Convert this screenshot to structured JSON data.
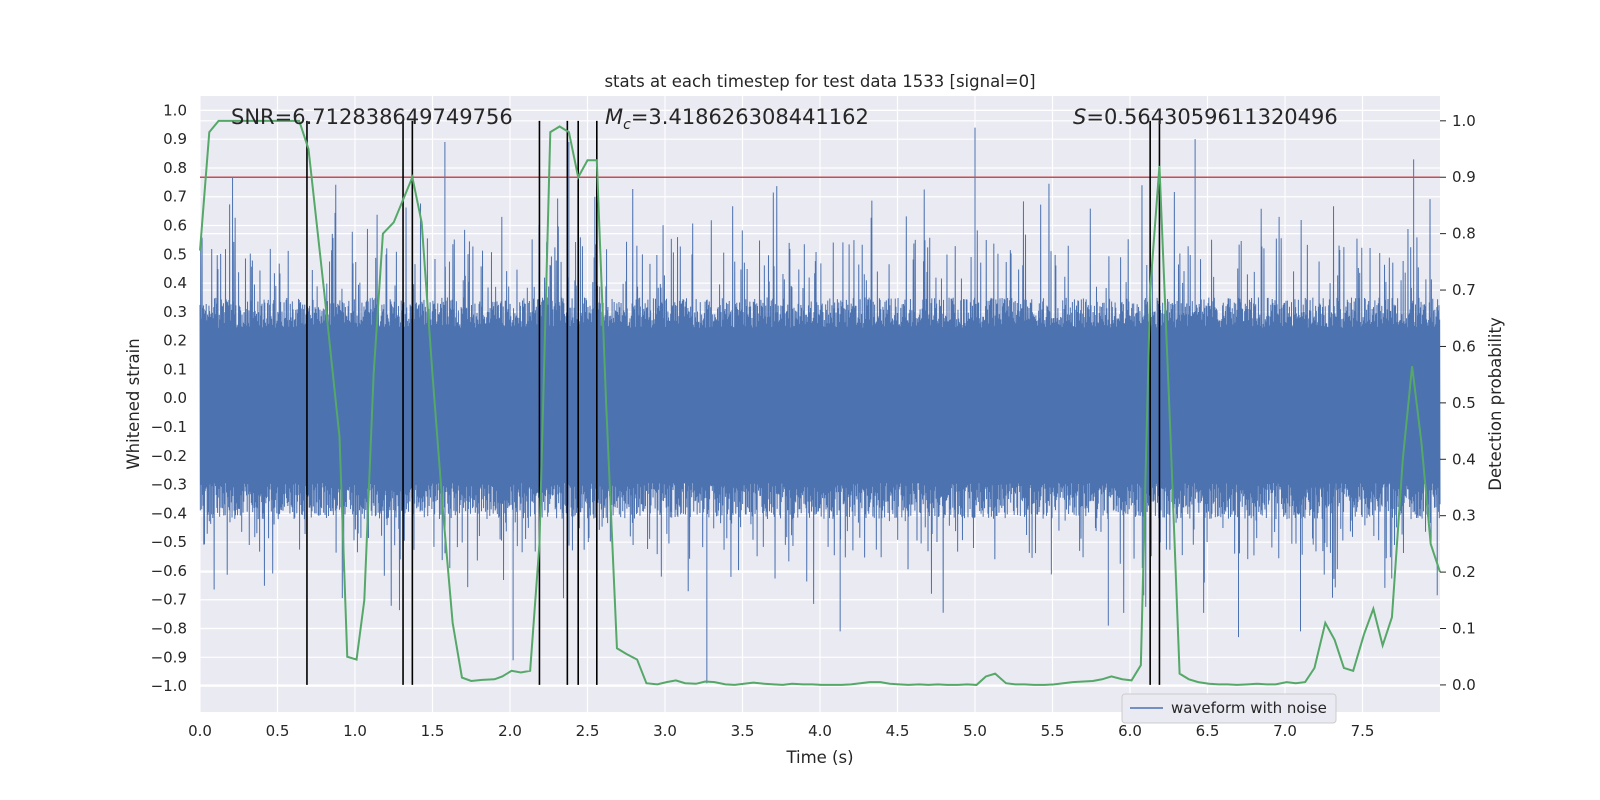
{
  "chart_data": {
    "type": "line",
    "title": "stats at each timestep for test data 1533 [signal=0]",
    "xlabel": "Time (s)",
    "ylabel": "Whitened strain",
    "y2label": "Detection probability",
    "xlim": [
      0,
      8
    ],
    "ylim": [
      -1.09,
      1.05
    ],
    "y2lim": [
      -0.048,
      1.044
    ],
    "xticks": [
      "0.0",
      "0.5",
      "1.0",
      "1.5",
      "2.0",
      "2.5",
      "3.0",
      "3.5",
      "4.0",
      "4.5",
      "5.0",
      "5.5",
      "6.0",
      "6.5",
      "7.0",
      "7.5"
    ],
    "yticks": [
      "1.0",
      "0.9",
      "0.8",
      "0.7",
      "0.6",
      "0.5",
      "0.4",
      "0.3",
      "0.2",
      "0.1",
      "0.0",
      "-0.1",
      "-0.2",
      "-0.3",
      "-0.4",
      "-0.5",
      "-0.6",
      "-0.7",
      "-0.8",
      "-0.9",
      "-1.0"
    ],
    "y2ticks": [
      "1.0",
      "0.9",
      "0.8",
      "0.7",
      "0.6",
      "0.5",
      "0.4",
      "0.3",
      "0.2",
      "0.1",
      "0.0"
    ],
    "grid": true,
    "legend_position": "lower-right",
    "annotations": {
      "snr": "SNR=6.712838649749756",
      "mc_symbol": "M",
      "mc_sub": "c",
      "mc_value": "=3.418626308441162",
      "s_symbol": "S",
      "s_value": "=0.5643059611320496"
    },
    "threshold": {
      "value": 0.9,
      "color": "#c44e52"
    },
    "vertical_markers": [
      0.69,
      1.31,
      1.37,
      2.19,
      2.37,
      2.44,
      2.56,
      6.13,
      6.19
    ],
    "series": [
      {
        "name": "waveform with noise",
        "color": "#4c72b0",
        "axis": "left",
        "note": "dense noisy strain, roughly symmetric band with peaks up to about 0.94 and dips to about -1.0",
        "envelope_hi": 0.35,
        "envelope_lo": -0.42,
        "notable_peaks": [
          {
            "x": 0.21,
            "y": 0.77
          },
          {
            "x": 1.37,
            "y": 0.9
          },
          {
            "x": 1.58,
            "y": 0.89
          },
          {
            "x": 2.38,
            "y": 0.89
          },
          {
            "x": 5.0,
            "y": 0.94
          },
          {
            "x": 6.42,
            "y": 0.9
          },
          {
            "x": 7.83,
            "y": 0.83
          }
        ],
        "notable_dips": [
          {
            "x": 2.02,
            "y": -0.91
          },
          {
            "x": 3.27,
            "y": -0.99
          },
          {
            "x": 4.13,
            "y": -0.81
          },
          {
            "x": 5.86,
            "y": -0.79
          },
          {
            "x": 6.7,
            "y": -0.83
          },
          {
            "x": 7.1,
            "y": -0.81
          }
        ]
      },
      {
        "name": "",
        "color": "#55a868",
        "axis": "right",
        "x": [
          0.0,
          0.06,
          0.12,
          0.2,
          0.3,
          0.4,
          0.5,
          0.6,
          0.64,
          0.7,
          0.8,
          0.9,
          0.95,
          1.01,
          1.06,
          1.12,
          1.18,
          1.25,
          1.31,
          1.37,
          1.43,
          1.5,
          1.57,
          1.63,
          1.69,
          1.75,
          1.82,
          1.9,
          1.95,
          2.01,
          2.07,
          2.13,
          2.19,
          2.26,
          2.32,
          2.38,
          2.44,
          2.5,
          2.56,
          2.62,
          2.69,
          2.75,
          2.82,
          2.88,
          2.95,
          3.01,
          3.07,
          3.13,
          3.2,
          3.26,
          3.32,
          3.39,
          3.45,
          3.51,
          3.57,
          3.64,
          3.7,
          3.76,
          3.82,
          3.89,
          3.95,
          4.01,
          4.07,
          4.14,
          4.2,
          4.26,
          4.32,
          4.39,
          4.45,
          4.51,
          4.57,
          4.64,
          4.7,
          4.76,
          4.82,
          4.89,
          4.95,
          5.01,
          5.07,
          5.13,
          5.2,
          5.26,
          5.32,
          5.38,
          5.45,
          5.51,
          5.57,
          5.63,
          5.7,
          5.76,
          5.82,
          5.88,
          5.95,
          6.01,
          6.07,
          6.13,
          6.19,
          6.26,
          6.32,
          6.38,
          6.44,
          6.51,
          6.57,
          6.63,
          6.69,
          6.76,
          6.82,
          6.88,
          6.94,
          7.01,
          7.07,
          7.13,
          7.19,
          7.26,
          7.32,
          7.38,
          7.44,
          7.51,
          7.57,
          7.63,
          7.69,
          7.76,
          7.82,
          7.88,
          7.94,
          8.0
        ],
        "values": [
          0.77,
          0.98,
          1.0,
          1.0,
          1.0,
          1.0,
          1.0,
          1.0,
          1.0,
          0.95,
          0.7,
          0.44,
          0.05,
          0.045,
          0.15,
          0.55,
          0.8,
          0.82,
          0.86,
          0.9,
          0.82,
          0.55,
          0.3,
          0.11,
          0.013,
          0.007,
          0.009,
          0.01,
          0.015,
          0.025,
          0.022,
          0.025,
          0.25,
          0.98,
          0.99,
          0.98,
          0.9,
          0.93,
          0.93,
          0.5,
          0.065,
          0.055,
          0.045,
          0.003,
          0.001,
          0.005,
          0.008,
          0.003,
          0.002,
          0.006,
          0.005,
          0.001,
          0.0,
          0.002,
          0.004,
          0.002,
          0.001,
          0.0,
          0.002,
          0.001,
          0.001,
          0.0,
          0.0,
          0.0,
          0.001,
          0.003,
          0.005,
          0.005,
          0.002,
          0.001,
          0.0,
          0.001,
          0.0,
          0.001,
          0.0,
          0.0,
          0.001,
          0.0,
          0.015,
          0.02,
          0.003,
          0.001,
          0.001,
          0.0,
          0.0,
          0.001,
          0.003,
          0.005,
          0.006,
          0.007,
          0.01,
          0.015,
          0.01,
          0.008,
          0.035,
          0.7,
          0.92,
          0.45,
          0.02,
          0.01,
          0.005,
          0.002,
          0.001,
          0.001,
          0.0,
          0.001,
          0.002,
          0.001,
          0.001,
          0.005,
          0.003,
          0.005,
          0.03,
          0.11,
          0.08,
          0.03,
          0.025,
          0.09,
          0.135,
          0.07,
          0.12,
          0.4,
          0.565,
          0.43,
          0.25,
          0.2
        ]
      }
    ]
  }
}
